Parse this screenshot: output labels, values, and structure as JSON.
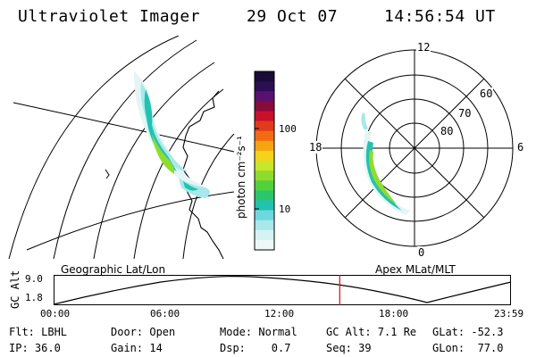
{
  "header": {
    "title": "Ultraviolet Imager",
    "date": "29 Oct 07",
    "time": "14:56:54 UT"
  },
  "map_left": {
    "label": "Geographic Lat/Lon"
  },
  "map_right": {
    "label": "Apex MLat/MLT",
    "mlt_labels": {
      "top": "12",
      "left": "18",
      "right": "6",
      "bottom": "0"
    },
    "lat_labels": [
      "60",
      "70",
      "80"
    ]
  },
  "colorbar": {
    "unit": "photon cm⁻²s⁻¹",
    "ticks": [
      "100",
      "10"
    ],
    "colors": [
      "#1a0a3a",
      "#2b0f52",
      "#5a1070",
      "#8a0a3a",
      "#c8102a",
      "#e03a1e",
      "#f26b12",
      "#f7a50e",
      "#f2d41a",
      "#c9e62a",
      "#8fdc2e",
      "#52d23a",
      "#2cc66a",
      "#22c2b0",
      "#6fd8de",
      "#a8e8ea",
      "#d6f2f2",
      "#eef8f8"
    ]
  },
  "altitude_plot": {
    "ylabel": "GC Alt",
    "yticks": [
      "9.0",
      "1.8"
    ],
    "xticks": [
      "00:00",
      "06:00",
      "12:00",
      "18:00",
      "23:59"
    ],
    "current_time_fraction": 0.6256
  },
  "info": {
    "filter": "Flt: LBHL",
    "ip": "IP: 36.0",
    "door": "Door: Open",
    "gain": "Gain: 14",
    "mode": "Mode: Normal",
    "dsp": "Dsp:    0.7",
    "gc_alt": "GC Alt: 7.1 Re",
    "seq": "Seq: 39",
    "glat": "GLat: -52.3",
    "glon": "GLon:  77.0"
  }
}
